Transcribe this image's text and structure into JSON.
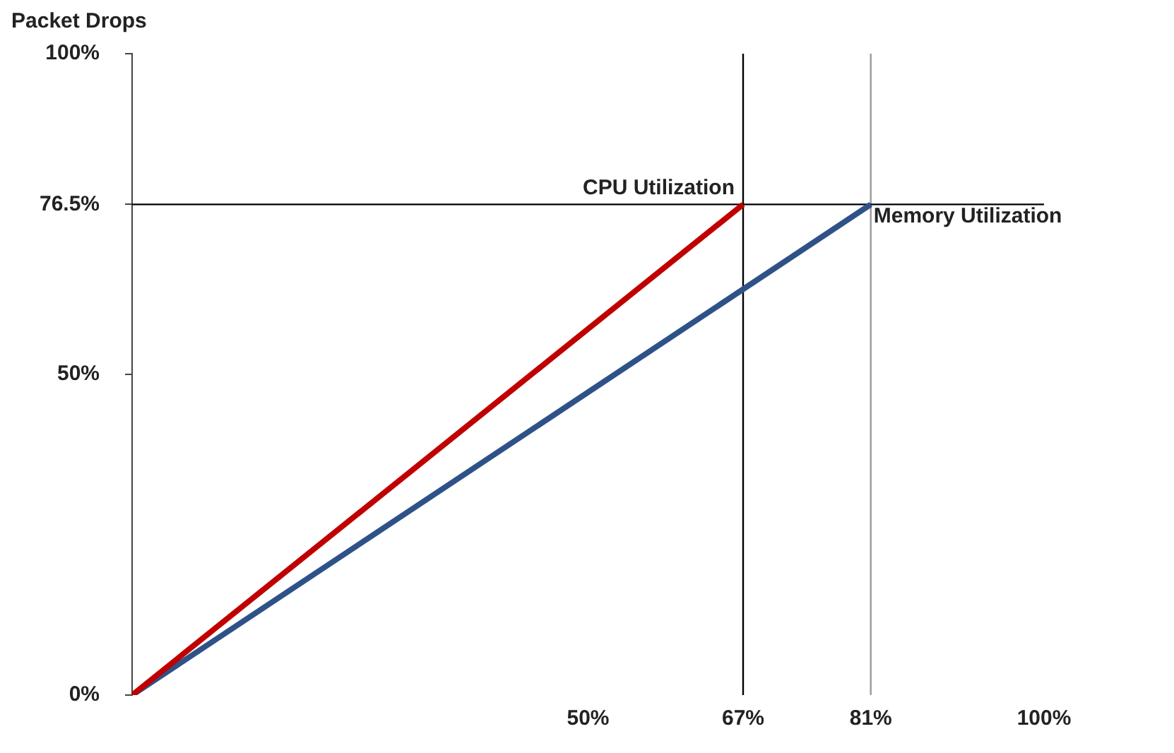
{
  "chart_data": {
    "type": "line",
    "ylabel": "Packet Drops",
    "series": [
      {
        "name": "CPU Utilization",
        "color": "#c00000",
        "x": [
          0,
          67
        ],
        "values": [
          0,
          76.5
        ]
      },
      {
        "name": "Memory Utilization",
        "color": "#2e5288",
        "x": [
          0,
          81
        ],
        "values": [
          0,
          76.5
        ]
      }
    ],
    "xlim": [
      0,
      100
    ],
    "ylim": [
      0,
      100
    ],
    "xticks": [
      {
        "value": 50,
        "label": "50%"
      },
      {
        "value": 67,
        "label": "67%"
      },
      {
        "value": 81,
        "label": "81%"
      },
      {
        "value": 100,
        "label": "100%"
      }
    ],
    "yticks": [
      {
        "value": 0,
        "label": "0%"
      },
      {
        "value": 50,
        "label": "50%"
      },
      {
        "value": 76.5,
        "label": "76.5%"
      },
      {
        "value": 100,
        "label": "100%"
      }
    ],
    "ref_lines": [
      {
        "axis": "x",
        "value": 67,
        "color": "#000000"
      },
      {
        "axis": "x",
        "value": 81,
        "color": "#999999"
      },
      {
        "axis": "y",
        "value": 76.5,
        "color": "#000000"
      }
    ],
    "grid": false,
    "legend": false,
    "marker": "none",
    "line_style": "solid"
  }
}
